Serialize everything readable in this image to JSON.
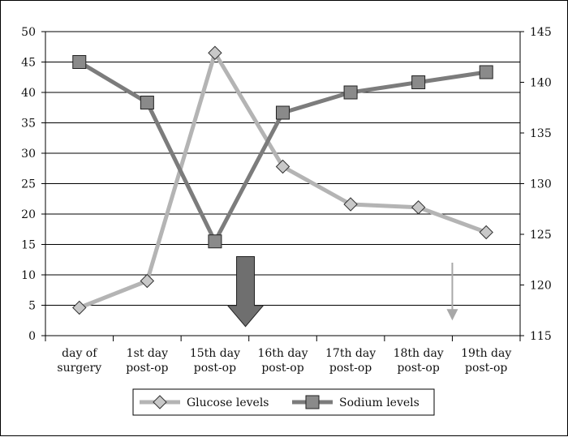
{
  "chart_data": {
    "type": "line",
    "categories": [
      [
        "day of",
        "surgery"
      ],
      [
        "1st day",
        "post-op"
      ],
      [
        "15th day",
        "post-op"
      ],
      [
        "16th day",
        "post-op"
      ],
      [
        "17th day",
        "post-op"
      ],
      [
        "18th day",
        "post-op"
      ],
      [
        "19th day",
        "post-op"
      ]
    ],
    "y_left": {
      "min": 0,
      "max": 50,
      "step": 5
    },
    "y_right": {
      "min": 115,
      "max": 145,
      "step": 5
    },
    "grid": true,
    "legend_position": "bottom",
    "series": [
      {
        "name": "Glucose levels",
        "axis": "left",
        "marker": "diamond",
        "color": "#b4b4b4",
        "values": [
          4.6,
          9.0,
          46.5,
          27.8,
          21.6,
          21.1,
          17.0
        ]
      },
      {
        "name": "Sodium levels",
        "axis": "right",
        "marker": "square",
        "color": "#7c7c7c",
        "values": [
          142.0,
          138.0,
          124.3,
          137.0,
          139.0,
          140.0,
          141.0
        ]
      }
    ],
    "annotations": [
      {
        "type": "large-down-arrow",
        "category_index": 2.45,
        "color": "#6f6f6f",
        "from_y_left": 13.0,
        "to_y_left": 1.5
      },
      {
        "type": "thin-down-arrow",
        "category_index": 5.5,
        "color": "#a8a8a8",
        "from_y_left": 12.0,
        "to_y_left": 2.5
      }
    ]
  }
}
